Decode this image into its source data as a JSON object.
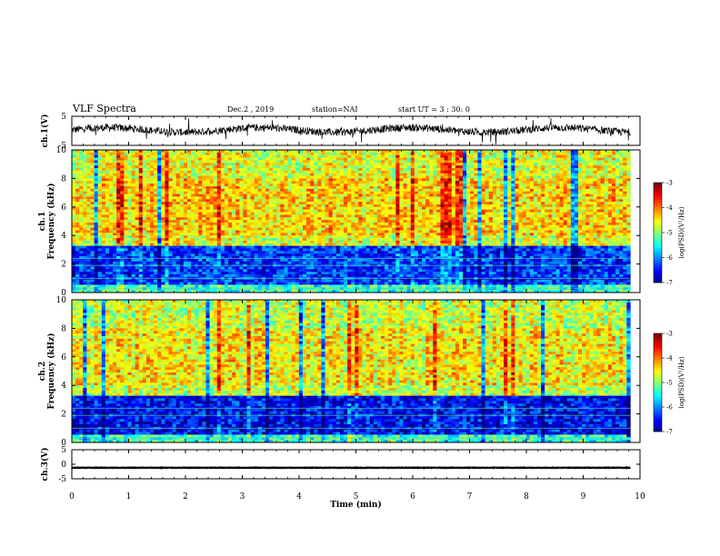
{
  "header": {
    "title": "VLF Spectra",
    "date": "Dec.2 , 2019",
    "station": "station=NAI",
    "start": "start UT =  3 : 30: 0"
  },
  "colors": {
    "frame": "#000000",
    "spectrogram_low": "#00008f",
    "spectrogram_high": "#d60000"
  },
  "chart_data": [
    {
      "type": "line",
      "name": "waveform-ch1",
      "ylabel": "ch.1(V)",
      "ylim": [
        -5,
        5
      ],
      "yticks": [
        "5",
        "-5"
      ],
      "xlim": [
        0,
        10
      ],
      "values_note": "noisy waveform around ~0 V"
    },
    {
      "type": "heatmap",
      "name": "spectrogram-ch1",
      "ylabel_top": "ch.1",
      "ylabel": "Frequency (kHz)",
      "ylim": [
        0,
        10
      ],
      "yticks": [
        "0",
        "2",
        "4",
        "6",
        "8",
        "10"
      ],
      "xlim": [
        0,
        10
      ],
      "data_extent_x": [
        0,
        9.83
      ],
      "colorbar": {
        "label": "log(PSD)(V²/Hz)",
        "ticks": [
          "-3",
          "-4",
          "-5",
          "-6",
          "-7"
        ],
        "range": [
          -7,
          -3
        ]
      },
      "bands": [
        {
          "from": 0,
          "to": 0.5,
          "level": -5.3
        },
        {
          "from": 0.5,
          "to": 3.2,
          "level": -6.3
        },
        {
          "from": 3.2,
          "to": 10,
          "level": -4.6
        }
      ]
    },
    {
      "type": "heatmap",
      "name": "spectrogram-ch2",
      "ylabel_top": "ch.2",
      "ylabel": "Frequency (kHz)",
      "ylim": [
        0,
        10
      ],
      "yticks": [
        "0",
        "2",
        "4",
        "6",
        "8",
        "10"
      ],
      "xlim": [
        0,
        10
      ],
      "data_extent_x": [
        0,
        9.83
      ],
      "colorbar": {
        "label": "log(PSD)(V²/Hz)",
        "ticks": [
          "-3",
          "-4",
          "-5",
          "-6",
          "-7"
        ],
        "range": [
          -7,
          -3
        ]
      },
      "bands": [
        {
          "from": 0,
          "to": 0.5,
          "level": -5.3
        },
        {
          "from": 0.5,
          "to": 3.2,
          "level": -6.5
        },
        {
          "from": 3.2,
          "to": 10,
          "level": -4.7
        }
      ]
    },
    {
      "type": "line",
      "name": "waveform-ch3",
      "ylabel": "ch.3(V)",
      "ylim": [
        -5,
        5
      ],
      "yticks": [
        "5",
        "0",
        "-5"
      ],
      "xlim": [
        0,
        10
      ],
      "values_note": "flat line near -1 V"
    },
    {
      "type": "axis",
      "xlabel": "Time (min)",
      "xticks": [
        "0",
        "1",
        "2",
        "3",
        "4",
        "5",
        "6",
        "7",
        "8",
        "9",
        "10"
      ],
      "xlim": [
        0,
        10
      ]
    }
  ]
}
